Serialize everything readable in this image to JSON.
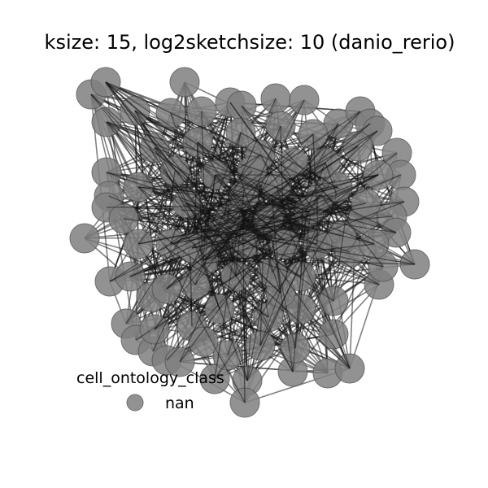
{
  "title": "ksize: 15, log2sketchsize: 10 (danio_rerio)",
  "legend": {
    "title": "cell_ontology_class",
    "entries": [
      {
        "label": "nan",
        "color": "#808080"
      }
    ]
  },
  "style": {
    "node_color": "#808080",
    "node_stroke": "#555555",
    "node_opacity": 0.85,
    "edge_color": "#1a1a1a",
    "edge_opacity": 0.55
  }
}
